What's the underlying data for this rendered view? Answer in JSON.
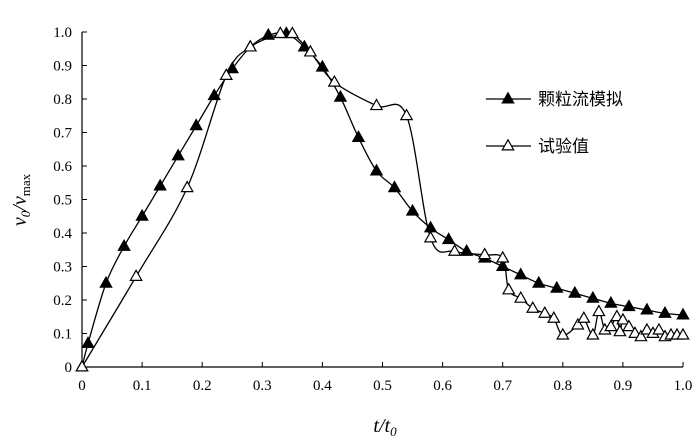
{
  "chart_data": {
    "type": "line",
    "title": "",
    "xlabel": "t/t₀",
    "ylabel": "v₀/v_max",
    "x_axis": {
      "label_main": "t",
      "label_sub": "0",
      "label_den": "t",
      "range": [
        0,
        1.0
      ],
      "ticks": [
        "0",
        "0.1",
        "0.2",
        "0.3",
        "0.4",
        "0.5",
        "0.6",
        "0.7",
        "0.8",
        "0.9",
        "1.0"
      ]
    },
    "y_axis": {
      "label_num": "v",
      "label_num_sub": "0",
      "label_den": "v",
      "label_den_sub": "max",
      "range": [
        0,
        1.0
      ],
      "ticks": [
        "0",
        "0.1",
        "0.2",
        "0.3",
        "0.4",
        "0.5",
        "0.6",
        "0.7",
        "0.8",
        "0.9",
        "1.0"
      ]
    },
    "grid": false,
    "legend_position": "top-right",
    "series": [
      {
        "name": "颗粒流模拟",
        "marker": "filled-triangle",
        "color": "#000000",
        "points": [
          [
            0,
            0
          ],
          [
            0.01,
            0.07
          ],
          [
            0.04,
            0.25
          ],
          [
            0.07,
            0.36
          ],
          [
            0.1,
            0.45
          ],
          [
            0.13,
            0.54
          ],
          [
            0.16,
            0.63
          ],
          [
            0.19,
            0.72
          ],
          [
            0.22,
            0.81
          ],
          [
            0.25,
            0.89
          ],
          [
            0.28,
            0.955
          ],
          [
            0.31,
            0.99
          ],
          [
            0.34,
            0.995
          ],
          [
            0.37,
            0.955
          ],
          [
            0.4,
            0.895
          ],
          [
            0.43,
            0.805
          ],
          [
            0.46,
            0.685
          ],
          [
            0.49,
            0.585
          ],
          [
            0.52,
            0.535
          ],
          [
            0.55,
            0.465
          ],
          [
            0.58,
            0.415
          ],
          [
            0.61,
            0.38
          ],
          [
            0.64,
            0.345
          ],
          [
            0.67,
            0.325
          ],
          [
            0.7,
            0.3
          ],
          [
            0.73,
            0.275
          ],
          [
            0.76,
            0.25
          ],
          [
            0.79,
            0.235
          ],
          [
            0.82,
            0.22
          ],
          [
            0.85,
            0.205
          ],
          [
            0.88,
            0.19
          ],
          [
            0.91,
            0.18
          ],
          [
            0.94,
            0.17
          ],
          [
            0.97,
            0.16
          ],
          [
            1.0,
            0.155
          ]
        ]
      },
      {
        "name": "试验值",
        "marker": "open-triangle",
        "color": "#000000",
        "points": [
          [
            0,
            0
          ],
          [
            0.09,
            0.27
          ],
          [
            0.175,
            0.535
          ],
          [
            0.24,
            0.87
          ],
          [
            0.28,
            0.955
          ],
          [
            0.33,
            0.995
          ],
          [
            0.35,
            0.995
          ],
          [
            0.38,
            0.94
          ],
          [
            0.42,
            0.85
          ],
          [
            0.49,
            0.78
          ],
          [
            0.54,
            0.75
          ],
          [
            0.58,
            0.385
          ],
          [
            0.62,
            0.345
          ],
          [
            0.67,
            0.335
          ],
          [
            0.7,
            0.325
          ],
          [
            0.71,
            0.23
          ],
          [
            0.73,
            0.205
          ],
          [
            0.75,
            0.175
          ],
          [
            0.77,
            0.16
          ],
          [
            0.785,
            0.145
          ],
          [
            0.8,
            0.095
          ],
          [
            0.825,
            0.125
          ],
          [
            0.835,
            0.145
          ],
          [
            0.85,
            0.095
          ],
          [
            0.86,
            0.165
          ],
          [
            0.87,
            0.11
          ],
          [
            0.88,
            0.12
          ],
          [
            0.89,
            0.15
          ],
          [
            0.895,
            0.105
          ],
          [
            0.9,
            0.14
          ],
          [
            0.91,
            0.12
          ],
          [
            0.92,
            0.1
          ],
          [
            0.93,
            0.09
          ],
          [
            0.94,
            0.11
          ],
          [
            0.95,
            0.1
          ],
          [
            0.96,
            0.11
          ],
          [
            0.97,
            0.09
          ],
          [
            0.98,
            0.095
          ],
          [
            0.99,
            0.095
          ],
          [
            1.0,
            0.095
          ]
        ]
      }
    ]
  }
}
